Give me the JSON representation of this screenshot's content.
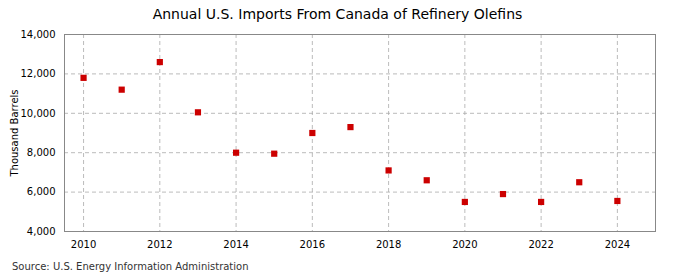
{
  "chart_data": {
    "type": "scatter",
    "title": "Annual U.S. Imports From Canada of Refinery Olefins",
    "ylabel": "Thousand Barrels",
    "source": "Source: U.S. Energy Information Administration",
    "x": [
      2010,
      2011,
      2012,
      2013,
      2014,
      2015,
      2016,
      2017,
      2018,
      2019,
      2020,
      2021,
      2022,
      2023,
      2024
    ],
    "values": [
      11800,
      11200,
      12600,
      10050,
      8000,
      7950,
      9000,
      9300,
      7100,
      6600,
      5500,
      5900,
      5500,
      6500,
      5550
    ],
    "color": "#cc0000",
    "marker": "square",
    "xlim": [
      2009.5,
      2025.0
    ],
    "xticks": [
      2010,
      2012,
      2014,
      2016,
      2018,
      2020,
      2022,
      2024
    ],
    "ylim": [
      4000,
      14000
    ],
    "yticks": [
      {
        "value": 4000,
        "label": "4,000"
      },
      {
        "value": 6000,
        "label": "6,000"
      },
      {
        "value": 8000,
        "label": "8,000"
      },
      {
        "value": 10000,
        "label": "10,000"
      },
      {
        "value": 12000,
        "label": "12,000"
      },
      {
        "value": 14000,
        "label": "14,000"
      }
    ],
    "grid": true
  }
}
